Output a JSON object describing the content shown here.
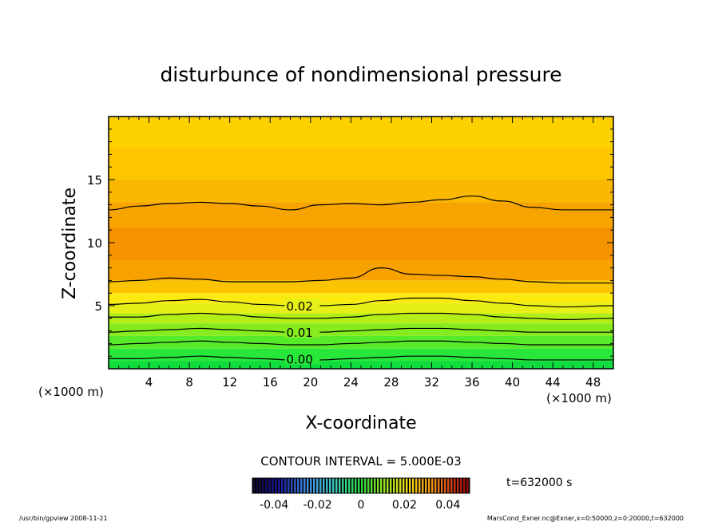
{
  "chart_data": {
    "type": "heatmap",
    "title": "disturbunce of nondimensional pressure",
    "xlabel": "X-coordinate",
    "ylabel": "Z-coordinate",
    "x_unit_left": "(×1000 m)",
    "x_unit_right": "(×1000 m)",
    "xlim": [
      0,
      50
    ],
    "ylim": [
      0,
      20
    ],
    "x_ticks": [
      4,
      8,
      12,
      16,
      20,
      24,
      28,
      32,
      36,
      40,
      44,
      48
    ],
    "y_ticks": [
      5,
      10,
      15
    ],
    "grid": false,
    "contour_interval_text": "CONTOUR INTERVAL = 5.000E-03",
    "contour_labels": [
      {
        "text": "0.02",
        "x": 17.6,
        "z": 5.0
      },
      {
        "text": "0.01",
        "x": 17.6,
        "z": 2.9
      },
      {
        "text": "0.00",
        "x": 17.6,
        "z": 0.8
      }
    ],
    "colorbar": {
      "ticks": [
        "-0.04",
        "-0.02",
        "0",
        "0.02",
        "0.04"
      ],
      "range": [
        -0.05,
        0.05
      ]
    },
    "bands": [
      {
        "z0": 0.0,
        "z1": 0.6,
        "color": "#10dc40"
      },
      {
        "z0": 0.6,
        "z1": 1.6,
        "color": "#28e63a"
      },
      {
        "z0": 1.6,
        "z1": 2.6,
        "color": "#56ea2a"
      },
      {
        "z0": 2.6,
        "z1": 3.6,
        "color": "#86ec20"
      },
      {
        "z0": 3.6,
        "z1": 4.4,
        "color": "#b4ee18"
      },
      {
        "z0": 4.4,
        "z1": 5.2,
        "color": "#e6f018"
      },
      {
        "z0": 5.2,
        "z1": 6.0,
        "color": "#fbea10"
      },
      {
        "z0": 6.0,
        "z1": 7.0,
        "color": "#fbc400"
      },
      {
        "z0": 7.0,
        "z1": 8.6,
        "color": "#f8a200"
      },
      {
        "z0": 8.6,
        "z1": 11.2,
        "color": "#f59400"
      },
      {
        "z0": 11.2,
        "z1": 13.2,
        "color": "#f8a400"
      },
      {
        "z0": 13.2,
        "z1": 15.0,
        "color": "#fbb800"
      },
      {
        "z0": 15.0,
        "z1": 17.5,
        "color": "#fdc600"
      },
      {
        "z0": 17.5,
        "z1": 20.0,
        "color": "#fdd000"
      }
    ],
    "contours": [
      {
        "z": [
          12.6,
          12.9,
          13.1,
          13.2,
          13.1,
          12.9,
          12.6,
          13.0,
          13.1,
          13.0,
          13.2,
          13.4,
          13.7,
          13.3,
          12.8,
          12.6,
          12.6
        ]
      },
      {
        "z": [
          6.9,
          7.0,
          7.2,
          7.1,
          6.9,
          6.9,
          6.9,
          7.0,
          7.2,
          8.0,
          7.5,
          7.4,
          7.3,
          7.1,
          6.9,
          6.8,
          6.8
        ]
      },
      {
        "z": [
          5.1,
          5.2,
          5.4,
          5.5,
          5.3,
          5.1,
          5.0,
          5.0,
          5.1,
          5.4,
          5.6,
          5.6,
          5.4,
          5.2,
          5.0,
          4.9,
          5.0
        ]
      },
      {
        "z": [
          4.1,
          4.1,
          4.3,
          4.4,
          4.3,
          4.1,
          4.0,
          4.0,
          4.1,
          4.3,
          4.4,
          4.4,
          4.3,
          4.1,
          4.0,
          3.9,
          4.0
        ]
      },
      {
        "z": [
          2.9,
          3.0,
          3.1,
          3.2,
          3.1,
          3.0,
          2.9,
          2.9,
          3.0,
          3.1,
          3.2,
          3.2,
          3.1,
          3.0,
          2.9,
          2.9,
          2.9
        ]
      },
      {
        "z": [
          1.9,
          2.0,
          2.1,
          2.2,
          2.1,
          2.0,
          1.9,
          1.9,
          2.0,
          2.1,
          2.2,
          2.2,
          2.1,
          2.0,
          1.9,
          1.9,
          1.9
        ]
      },
      {
        "z": [
          0.8,
          0.8,
          0.9,
          1.0,
          0.9,
          0.8,
          0.7,
          0.7,
          0.8,
          0.9,
          1.0,
          1.0,
          0.9,
          0.8,
          0.7,
          0.7,
          0.7
        ]
      }
    ],
    "contour_x": [
      0,
      3,
      6,
      9,
      12,
      15,
      18,
      21,
      24,
      27,
      30,
      33,
      36,
      39,
      42,
      45,
      50
    ]
  },
  "annotations": {
    "time": "t=632000 s",
    "footer_left": "/usr/bin/gpview   2008-11-21",
    "footer_right": "MarsCond_Exner.nc@Exner,x=0:50000,z=0:20000,t=632000"
  }
}
